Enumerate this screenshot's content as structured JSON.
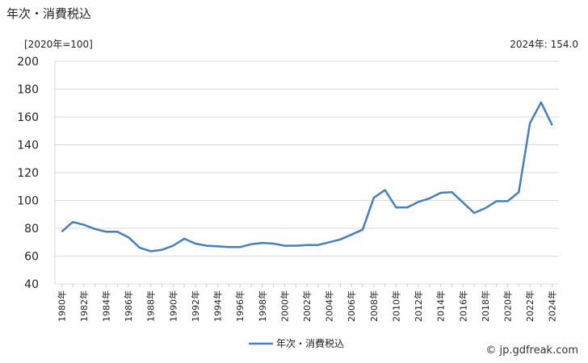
{
  "chart_data": {
    "type": "line",
    "title": "年次・消費税込",
    "unit_label": "[2020年=100]",
    "latest_label": "2024年: 154.0",
    "x_labels": [
      "1980年",
      "1982年",
      "1984年",
      "1986年",
      "1988年",
      "1990年",
      "1992年",
      "1994年",
      "1996年",
      "1998年",
      "2000年",
      "2002年",
      "2004年",
      "2006年",
      "2008年",
      "2010年",
      "2012年",
      "2014年",
      "2016年",
      "2018年",
      "2020年",
      "2022年",
      "2024年"
    ],
    "y_ticks": [
      40,
      60,
      80,
      100,
      120,
      140,
      160,
      180,
      200
    ],
    "ylim": [
      40,
      200
    ],
    "grid": true,
    "legend_position": "bottom",
    "series": [
      {
        "name": "年次・消費税込",
        "color": "#4a7ebb",
        "x": [
          1980,
          1981,
          1982,
          1983,
          1984,
          1985,
          1986,
          1987,
          1988,
          1989,
          1990,
          1991,
          1992,
          1993,
          1994,
          1995,
          1996,
          1997,
          1998,
          1999,
          2000,
          2001,
          2002,
          2003,
          2004,
          2005,
          2006,
          2007,
          2008,
          2009,
          2010,
          2011,
          2012,
          2013,
          2014,
          2015,
          2016,
          2017,
          2018,
          2019,
          2020,
          2021,
          2022,
          2023,
          2024
        ],
        "values": [
          77.5,
          84.5,
          82.5,
          79.5,
          77.5,
          77.5,
          73.5,
          66,
          63.5,
          64.5,
          67.5,
          72.5,
          69,
          67.5,
          67,
          66.5,
          66.5,
          68.5,
          69.5,
          69,
          67.5,
          67.5,
          68,
          68,
          70,
          72,
          75.5,
          79,
          102,
          107.5,
          95,
          95,
          99,
          101.5,
          105.5,
          106,
          98.5,
          91,
          94.5,
          99.5,
          99.5,
          106,
          155.5,
          170.5,
          154
        ]
      }
    ]
  },
  "footer": {
    "credit": "© jp.gdfreak.com"
  }
}
